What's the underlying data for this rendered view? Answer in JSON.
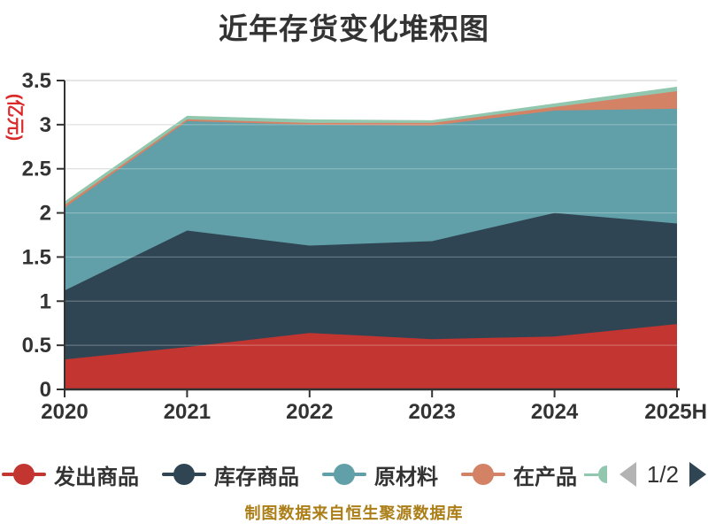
{
  "title": {
    "text": "近年存货变化堆积图"
  },
  "y_axis": {
    "name": "(亿元)",
    "name_color": "#d92b2b"
  },
  "chart_data": {
    "type": "area",
    "stacked": true,
    "title": "近年存货变化堆积图",
    "categories": [
      "2020",
      "2021",
      "2022",
      "2023",
      "2024",
      "2025H"
    ],
    "series": [
      {
        "name": "发出商品",
        "color": "#c23531",
        "values": [
          0.34,
          0.48,
          0.64,
          0.57,
          0.6,
          0.74
        ]
      },
      {
        "name": "库存商品",
        "color": "#2f4554",
        "values": [
          0.78,
          1.32,
          0.99,
          1.11,
          1.4,
          1.14
        ]
      },
      {
        "name": "原材料",
        "color": "#61a0a8",
        "values": [
          0.94,
          1.24,
          1.37,
          1.31,
          1.16,
          1.3
        ]
      },
      {
        "name": "在产品",
        "color": "#d48265",
        "values": [
          0.03,
          0.02,
          0.02,
          0.03,
          0.04,
          0.2
        ]
      },
      {
        "name": "",
        "color": "#91c7ae",
        "values": [
          0.04,
          0.04,
          0.04,
          0.03,
          0.04,
          0.05
        ]
      }
    ],
    "xlabel": "",
    "ylabel": "(亿元)",
    "ylim": [
      0,
      3.5
    ],
    "ytick_step": 0.5,
    "y_tick_labels": [
      "0",
      "0.5",
      "1",
      "1.5",
      "2",
      "2.5",
      "3",
      "3.5"
    ],
    "grid": true,
    "grid_color": "#cccccc",
    "axis_color": "#333333",
    "legend_position": "bottom"
  },
  "legend": {
    "items": [
      {
        "label": "发出商品",
        "color": "#c23531"
      },
      {
        "label": "库存商品",
        "color": "#2f4554"
      },
      {
        "label": "原材料",
        "color": "#61a0a8"
      },
      {
        "label": "在产品",
        "color": "#d48265"
      }
    ],
    "overflow_item_color": "#91c7ae",
    "pager": {
      "label": "1/2",
      "prev_color": "#b3b3b3",
      "next_color": "#2f4554"
    }
  },
  "footer": {
    "text": "制图数据来自恒生聚源数据库",
    "color": "#ab7e17"
  }
}
